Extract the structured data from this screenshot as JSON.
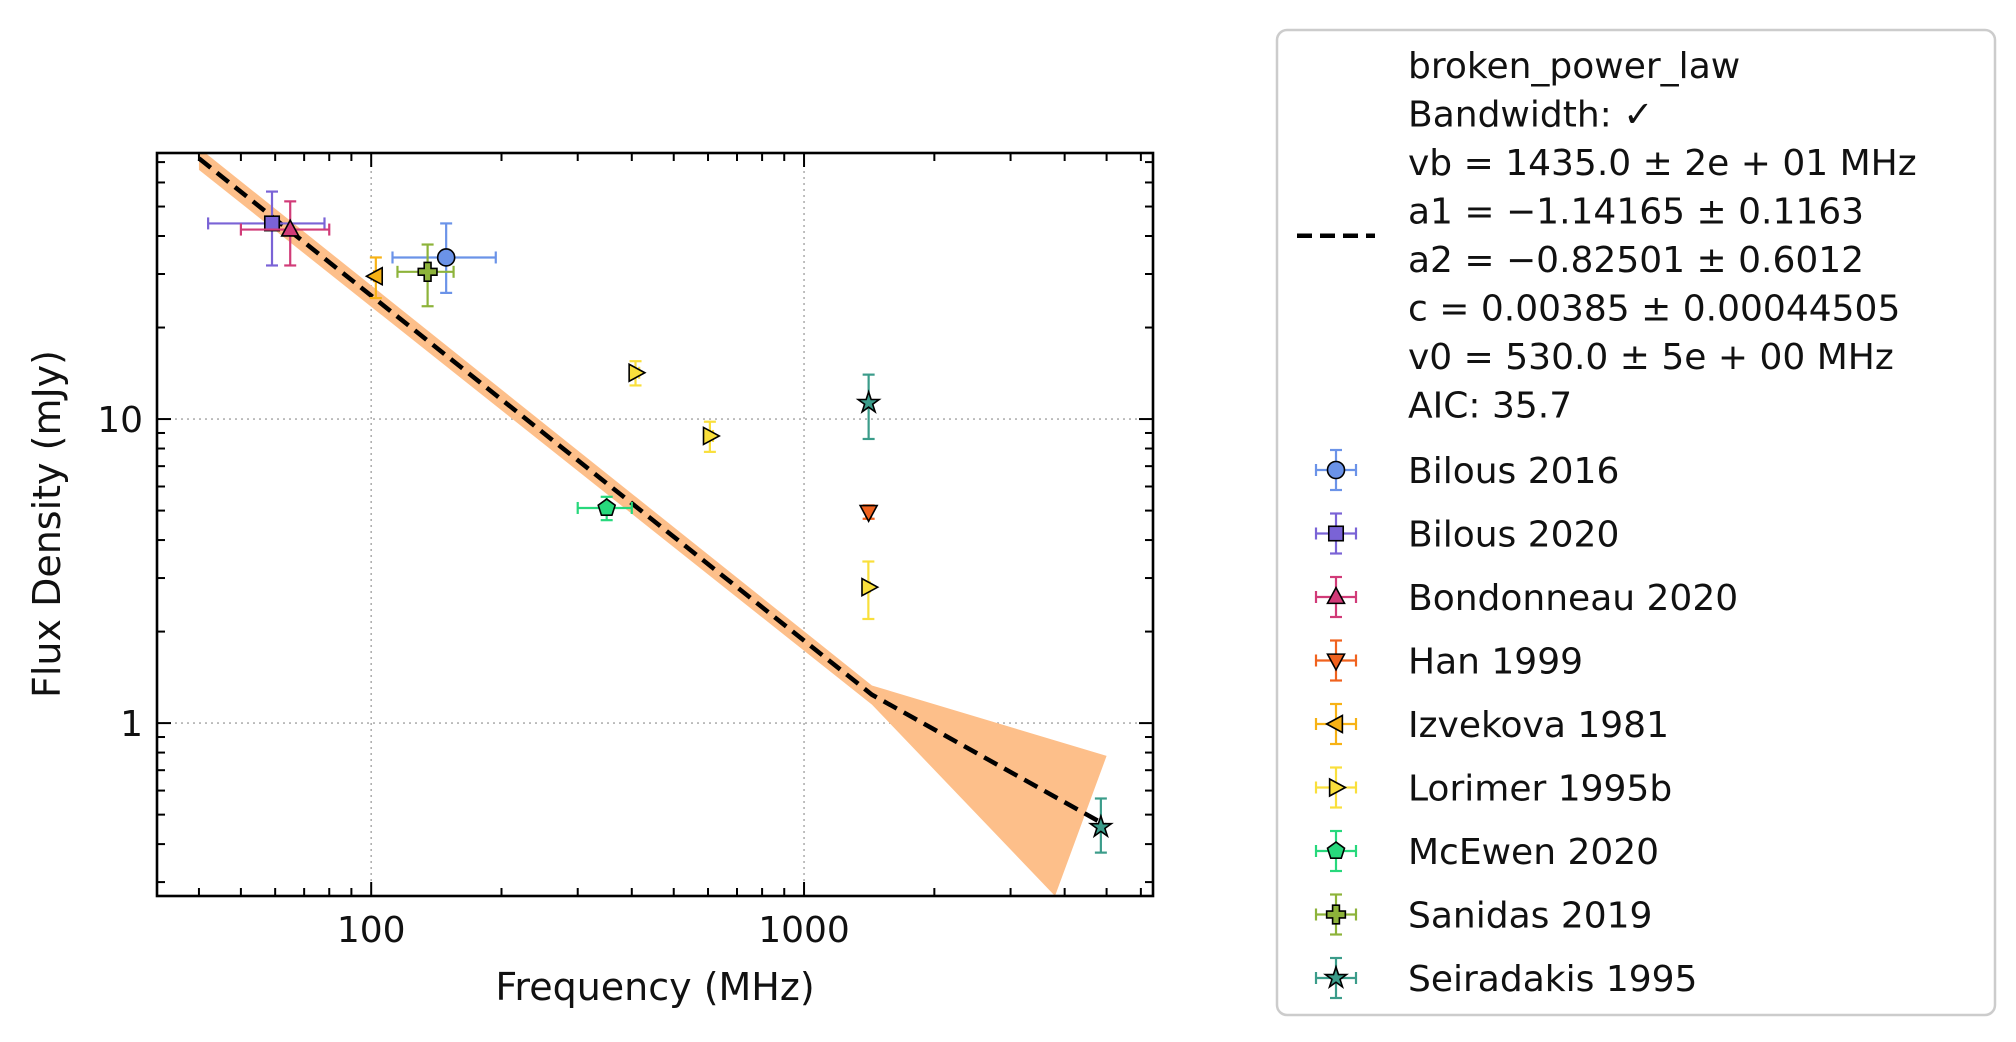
{
  "chart_data": {
    "type": "scatter",
    "xlabel": "Frequency (MHz)",
    "ylabel": "Flux Density (mJy)",
    "xscale": "log",
    "yscale": "log",
    "xlim": [
      32,
      6400
    ],
    "ylim": [
      0.27,
      75
    ],
    "xticks": [
      {
        "value": 100,
        "label": "100"
      },
      {
        "value": 1000,
        "label": "1000"
      }
    ],
    "yticks": [
      {
        "value": 1,
        "label": "1"
      },
      {
        "value": 10,
        "label": "10"
      }
    ],
    "grid": true,
    "legend_position": "outside-right",
    "fit": {
      "label_lines": [
        "broken_power_law",
        "Bandwidth: ✓",
        "vb = 1435.0 ± 2e + 01 MHz",
        "a1 = −1.14165 ± 0.1163",
        "a2 = −0.82501 ± 0.6012",
        "c = 0.00385 ± 0.00044505",
        "v0 = 530.0 ± 5e + 00 MHz",
        "AIC: 35.7"
      ],
      "curve": [
        [
          40,
          72
        ],
        [
          1435,
          1.24
        ],
        [
          5000,
          0.46
        ]
      ],
      "band_upper": [
        [
          40,
          78
        ],
        [
          1435,
          1.33
        ],
        [
          5000,
          0.78
        ]
      ],
      "band_lower": [
        [
          40,
          66
        ],
        [
          1435,
          1.15
        ],
        [
          3800,
          0.27
        ]
      ],
      "line_color": "#000000",
      "band_color": "#fdbf8a"
    },
    "series": [
      {
        "name": "Bilous 2016",
        "marker": "circle",
        "color": "#6b93e8",
        "err_color": "#6b93e8",
        "points": [
          {
            "x": 149,
            "y": 34,
            "xerr": [
              37,
              45
            ],
            "yerr": [
              8,
              10
            ]
          }
        ]
      },
      {
        "name": "Bilous 2020",
        "marker": "square",
        "color": "#7a63d6",
        "err_color": "#7a63d6",
        "points": [
          {
            "x": 59,
            "y": 44,
            "xerr": [
              17,
              19
            ],
            "yerr": [
              12,
              12
            ]
          }
        ]
      },
      {
        "name": "Bondonneau 2020",
        "marker": "triangle-up",
        "color": "#d13b78",
        "err_color": "#d13b78",
        "points": [
          {
            "x": 65,
            "y": 42,
            "xerr": [
              15,
              15
            ],
            "yerr": [
              10,
              10
            ]
          }
        ]
      },
      {
        "name": "Han 1999",
        "marker": "triangle-down",
        "color": "#f0621e",
        "err_color": "#f0621e",
        "points": [
          {
            "x": 1410,
            "y": 4.95,
            "xerr": [
              18,
              18
            ],
            "yerr": [
              0.25,
              0.25
            ]
          }
        ]
      },
      {
        "name": "Izvekova 1981",
        "marker": "triangle-left",
        "color": "#f7b215",
        "err_color": "#f7b215",
        "points": [
          {
            "x": 102.5,
            "y": 29.5,
            "xerr": [
              1,
              1
            ],
            "yerr": [
              4.5,
              4.5
            ]
          }
        ]
      },
      {
        "name": "Lorimer 1995b",
        "marker": "triangle-right",
        "color": "#f9df3c",
        "err_color": "#f9df3c",
        "points": [
          {
            "x": 408,
            "y": 14.2,
            "xerr": [
              8,
              8
            ],
            "yerr": [
              1.3,
              1.3
            ]
          },
          {
            "x": 606,
            "y": 8.8,
            "xerr": [
              10,
              10
            ],
            "yerr": [
              1.0,
              1.0
            ]
          },
          {
            "x": 1408,
            "y": 2.8,
            "xerr": [
              10,
              10
            ],
            "yerr": [
              0.6,
              0.6
            ]
          }
        ]
      },
      {
        "name": "McEwen 2020",
        "marker": "pentagon",
        "color": "#27d87c",
        "err_color": "#27d87c",
        "points": [
          {
            "x": 350,
            "y": 5.1,
            "xerr": [
              50,
              50
            ],
            "yerr": [
              0.45,
              0.45
            ]
          }
        ]
      },
      {
        "name": "Sanidas 2019",
        "marker": "plus",
        "color": "#8db33a",
        "err_color": "#8db33a",
        "points": [
          {
            "x": 135,
            "y": 30.5,
            "xerr": [
              20,
              20
            ],
            "yerr": [
              7,
              7
            ]
          }
        ]
      },
      {
        "name": "Seiradakis 1995",
        "marker": "star",
        "color": "#3b9c8a",
        "err_color": "#3b9c8a",
        "points": [
          {
            "x": 1410,
            "y": 11.3,
            "xerr": [
              0,
              0
            ],
            "yerr": [
              2.7,
              2.7
            ]
          },
          {
            "x": 4850,
            "y": 0.455,
            "xerr": [
              0,
              0
            ],
            "yerr": [
              0.08,
              0.11
            ]
          }
        ]
      }
    ]
  }
}
